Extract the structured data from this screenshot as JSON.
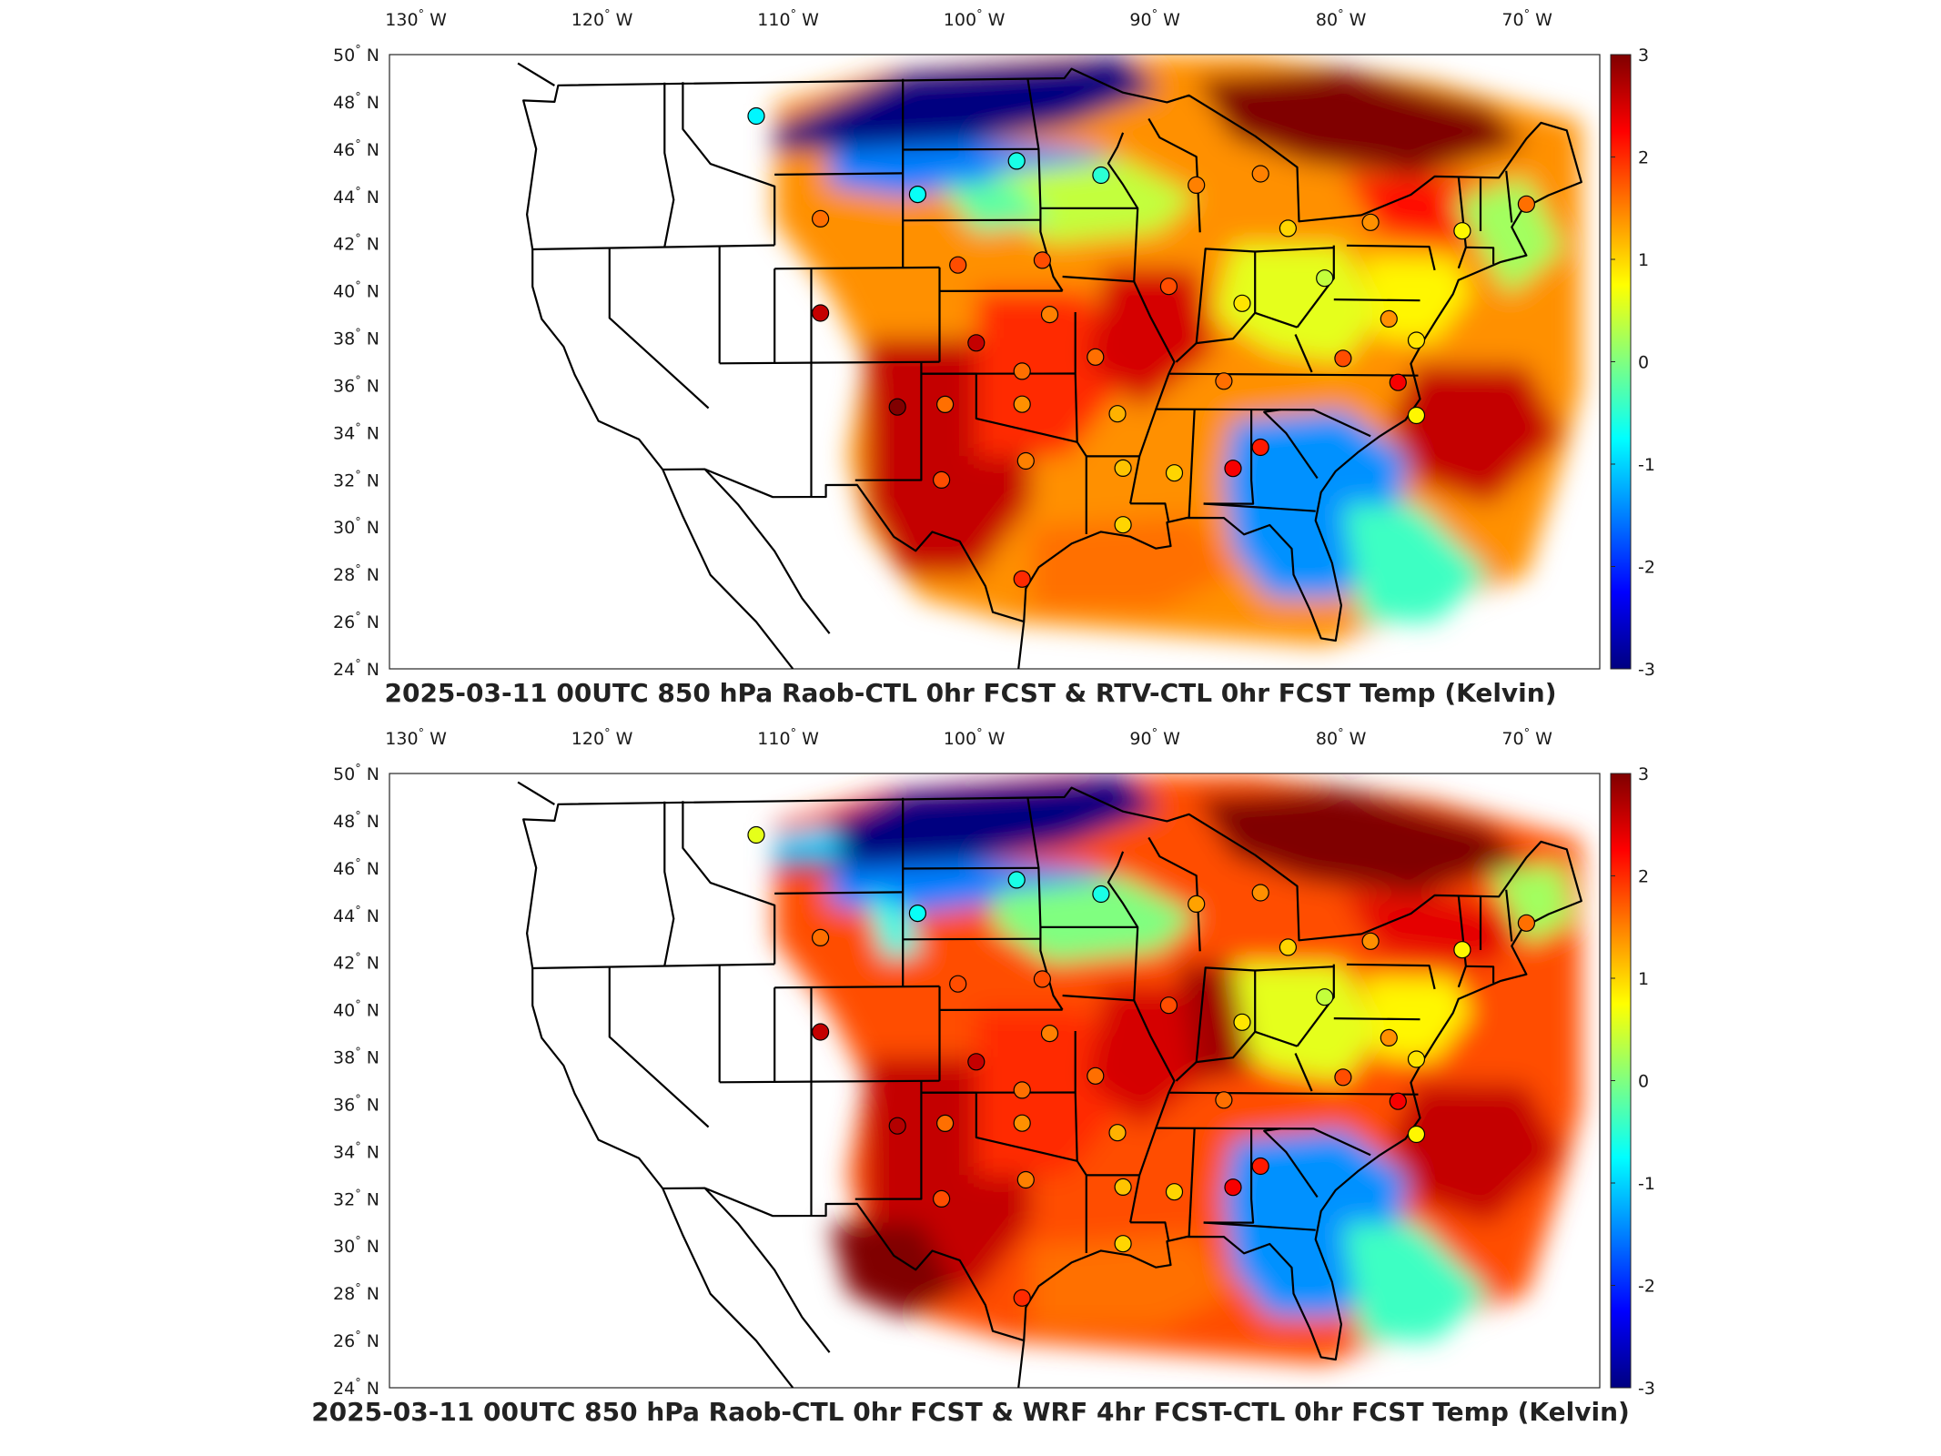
{
  "panels": [
    {
      "title": "2025-03-11 00UTC 850 hPa Raob-CTL 0hr FCST & RTV-CTL 0hr FCST Temp (Kelvin)",
      "field_source": "RTV-CTL 0hr FCST"
    },
    {
      "title": "2025-03-11 00UTC 850 hPa Raob-CTL 0hr FCST & WRF 4hr FCST-CTL 0hr FCST Temp (Kelvin)",
      "field_source": "WRF 4hr FCST-CTL 0hr FCST"
    }
  ],
  "axes": {
    "lon_labels": [
      "130",
      "120",
      "110",
      "100",
      "90",
      "80",
      "70"
    ],
    "lon_hemisphere": "W",
    "lat_labels": [
      "50",
      "48",
      "46",
      "44",
      "42",
      "40",
      "38",
      "36",
      "34",
      "32",
      "30",
      "28",
      "26",
      "24"
    ],
    "lat_hemisphere": "N",
    "degree_symbol": "°"
  },
  "colorbar": {
    "ticks": [
      "3",
      "2",
      "1",
      "0",
      "-1",
      "-2",
      "-3"
    ],
    "colormap": "jet",
    "colors": [
      "#7f0000",
      "#ff0000",
      "#ff8000",
      "#ffff00",
      "#80ff80",
      "#00ffff",
      "#0080ff",
      "#0000ff",
      "#00007f"
    ],
    "range": [
      -3,
      3
    ]
  },
  "map_data": {
    "projection": "Lambert conformal CONUS",
    "lon_range": [
      -130,
      -67
    ],
    "lat_range": [
      24,
      50
    ],
    "stations": [
      {
        "lon": -112,
        "lat": 47.5,
        "value_top": -0.8,
        "value_bottom": 0.6
      },
      {
        "lon": -108.5,
        "lat": 43.1,
        "value_top": 1.6,
        "value_bottom": 1.6
      },
      {
        "lon": -103.2,
        "lat": 44.1,
        "value_top": -0.7,
        "value_bottom": -0.7
      },
      {
        "lon": -97.8,
        "lat": 45.5,
        "value_top": -0.6,
        "value_bottom": -0.6
      },
      {
        "lon": -93.2,
        "lat": 44.9,
        "value_top": -0.5,
        "value_bottom": -0.6
      },
      {
        "lon": -88.0,
        "lat": 44.5,
        "value_top": 1.5,
        "value_bottom": 1.3
      },
      {
        "lon": -84.5,
        "lat": 45.0,
        "value_top": 1.5,
        "value_bottom": 1.4
      },
      {
        "lon": -83.0,
        "lat": 42.7,
        "value_top": 1.0,
        "value_bottom": 1.0
      },
      {
        "lon": -78.5,
        "lat": 43.0,
        "value_top": 1.4,
        "value_bottom": 1.4
      },
      {
        "lon": -73.5,
        "lat": 42.7,
        "value_top": 0.8,
        "value_bottom": 0.8
      },
      {
        "lon": -70.0,
        "lat": 43.9,
        "value_top": 1.6,
        "value_bottom": 1.6
      },
      {
        "lon": -108.5,
        "lat": 39.1,
        "value_top": 2.6,
        "value_bottom": 2.6
      },
      {
        "lon": -104.3,
        "lat": 35.1,
        "value_top": 3.0,
        "value_bottom": 2.7
      },
      {
        "lon": -101.0,
        "lat": 41.1,
        "value_top": 1.8,
        "value_bottom": 1.8
      },
      {
        "lon": -96.4,
        "lat": 41.3,
        "value_top": 1.8,
        "value_bottom": 1.8
      },
      {
        "lon": -96.0,
        "lat": 39.0,
        "value_top": 1.5,
        "value_bottom": 1.5
      },
      {
        "lon": -100.0,
        "lat": 37.8,
        "value_top": 2.6,
        "value_bottom": 2.6
      },
      {
        "lon": -97.5,
        "lat": 36.6,
        "value_top": 1.6,
        "value_bottom": 1.6
      },
      {
        "lon": -97.5,
        "lat": 35.2,
        "value_top": 1.4,
        "value_bottom": 1.4
      },
      {
        "lon": -101.7,
        "lat": 35.2,
        "value_top": 1.6,
        "value_bottom": 1.6
      },
      {
        "lon": -93.5,
        "lat": 37.2,
        "value_top": 1.6,
        "value_bottom": 1.6
      },
      {
        "lon": -89.5,
        "lat": 40.2,
        "value_top": 1.8,
        "value_bottom": 1.8
      },
      {
        "lon": -85.5,
        "lat": 39.5,
        "value_top": 0.9,
        "value_bottom": 0.9
      },
      {
        "lon": -81.0,
        "lat": 40.6,
        "value_top": 0.4,
        "value_bottom": 0.4
      },
      {
        "lon": -86.5,
        "lat": 36.2,
        "value_top": 1.6,
        "value_bottom": 1.6
      },
      {
        "lon": -80.0,
        "lat": 37.2,
        "value_top": 1.8,
        "value_bottom": 1.8
      },
      {
        "lon": -77.0,
        "lat": 36.2,
        "value_top": 2.3,
        "value_bottom": 2.3
      },
      {
        "lon": -77.5,
        "lat": 38.9,
        "value_top": 1.4,
        "value_bottom": 1.4
      },
      {
        "lon": -76.0,
        "lat": 38.0,
        "value_top": 0.9,
        "value_bottom": 0.9
      },
      {
        "lon": -76.0,
        "lat": 34.8,
        "value_top": 0.8,
        "value_bottom": 0.8
      },
      {
        "lon": -92.3,
        "lat": 34.8,
        "value_top": 1.2,
        "value_bottom": 1.2
      },
      {
        "lon": -97.3,
        "lat": 32.8,
        "value_top": 1.5,
        "value_bottom": 1.5
      },
      {
        "lon": -101.9,
        "lat": 32.0,
        "value_top": 1.8,
        "value_bottom": 1.8
      },
      {
        "lon": -92.0,
        "lat": 32.5,
        "value_top": 1.1,
        "value_bottom": 1.1
      },
      {
        "lon": -89.2,
        "lat": 32.3,
        "value_top": 1.0,
        "value_bottom": 1.0
      },
      {
        "lon": -86.0,
        "lat": 32.5,
        "value_top": 2.3,
        "value_bottom": 2.3
      },
      {
        "lon": -84.5,
        "lat": 33.4,
        "value_top": 2.1,
        "value_bottom": 2.1
      },
      {
        "lon": -92.0,
        "lat": 30.1,
        "value_top": 1.0,
        "value_bottom": 1.0
      },
      {
        "lon": -97.5,
        "lat": 27.8,
        "value_top": 2.0,
        "value_bottom": 2.0
      }
    ]
  }
}
